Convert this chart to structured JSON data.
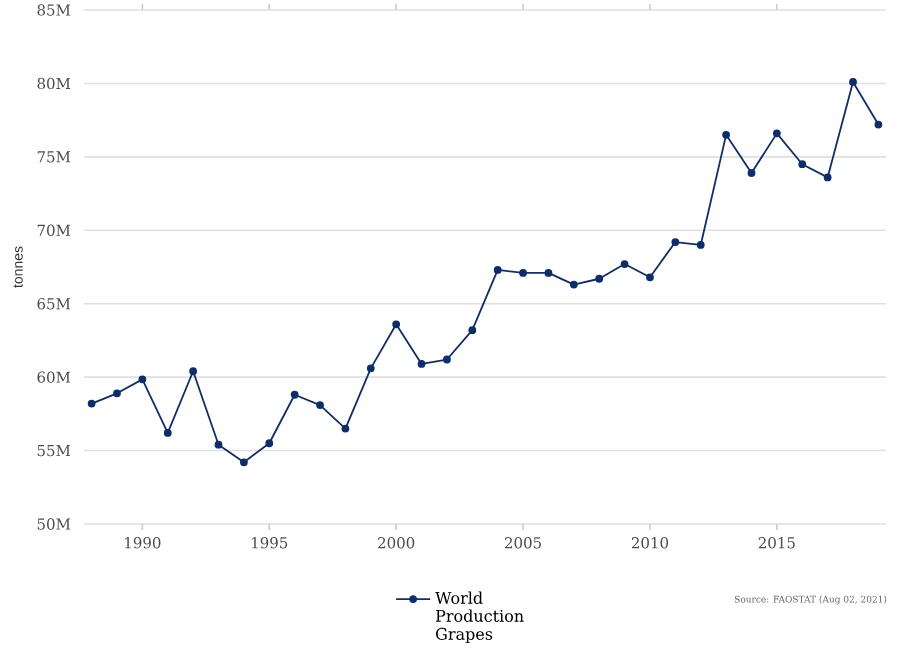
{
  "chart_data": {
    "type": "line",
    "ylabel": "tonnes",
    "x": [
      1988,
      1989,
      1990,
      1991,
      1992,
      1993,
      1994,
      1995,
      1996,
      1997,
      1998,
      1999,
      2000,
      2001,
      2002,
      2003,
      2004,
      2005,
      2006,
      2007,
      2008,
      2009,
      2010,
      2011,
      2012,
      2013,
      2014,
      2015,
      2016,
      2017,
      2018,
      2019
    ],
    "series": [
      {
        "name": "World Production Grapes",
        "color": "#0f2d6b",
        "values": [
          58200000,
          58900000,
          59850000,
          56200000,
          60400000,
          55400000,
          54200000,
          55500000,
          58800000,
          58100000,
          56500000,
          60600000,
          63600000,
          60900000,
          61200000,
          63200000,
          67300000,
          67100000,
          67100000,
          66300000,
          66700000,
          67700000,
          66800000,
          69200000,
          69000000,
          76500000,
          73900000,
          76600000,
          74500000,
          73600000,
          80100000,
          77200000
        ]
      }
    ],
    "xlim": [
      1987.7,
      2019.3
    ],
    "xticks": [
      1990,
      1995,
      2000,
      2005,
      2010,
      2015
    ],
    "ylim": [
      50000000,
      85000000
    ],
    "yticks": [
      {
        "value": 50000000,
        "label": "50M"
      },
      {
        "value": 55000000,
        "label": "55M"
      },
      {
        "value": 60000000,
        "label": "60M"
      },
      {
        "value": 65000000,
        "label": "65M"
      },
      {
        "value": 70000000,
        "label": "70M"
      },
      {
        "value": 75000000,
        "label": "75M"
      },
      {
        "value": 80000000,
        "label": "80M"
      },
      {
        "value": 85000000,
        "label": "85M"
      }
    ],
    "grid": "y",
    "legend": "bottom",
    "marker": "circle",
    "line_style": "solid",
    "annotations": [
      "Source: FAOSTAT (Aug 02, 2021)"
    ]
  }
}
